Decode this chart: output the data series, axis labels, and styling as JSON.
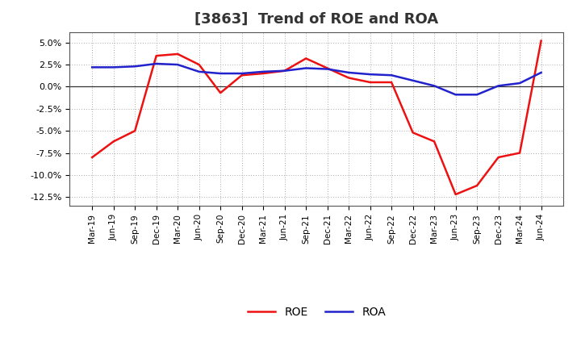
{
  "title": "[3863]  Trend of ROE and ROA",
  "x_labels": [
    "Mar-19",
    "Jun-19",
    "Sep-19",
    "Dec-19",
    "Mar-20",
    "Jun-20",
    "Sep-20",
    "Dec-20",
    "Mar-21",
    "Jun-21",
    "Sep-21",
    "Dec-21",
    "Mar-22",
    "Jun-22",
    "Sep-22",
    "Dec-22",
    "Mar-23",
    "Jun-23",
    "Sep-23",
    "Dec-23",
    "Mar-24",
    "Jun-24"
  ],
  "roe": [
    -8.0,
    -6.2,
    -5.0,
    3.5,
    3.7,
    2.5,
    -0.7,
    1.3,
    1.5,
    1.8,
    3.2,
    2.1,
    1.0,
    0.5,
    0.5,
    -5.2,
    -6.2,
    -12.2,
    -11.2,
    -8.0,
    -7.5,
    5.2
  ],
  "roa": [
    2.2,
    2.2,
    2.3,
    2.6,
    2.5,
    1.7,
    1.5,
    1.5,
    1.7,
    1.8,
    2.1,
    2.0,
    1.6,
    1.4,
    1.3,
    0.7,
    0.1,
    -0.9,
    -0.9,
    0.1,
    0.4,
    1.6
  ],
  "roe_color": "#ee1111",
  "roa_color": "#2222cc",
  "background_color": "#ffffff",
  "grid_color": "#aaaaaa",
  "ylim": [
    -13.5,
    6.2
  ],
  "yticks": [
    -12.5,
    -10.0,
    -7.5,
    -5.0,
    -2.5,
    0.0,
    2.5,
    5.0
  ],
  "title_fontsize": 13,
  "line_width": 1.8
}
